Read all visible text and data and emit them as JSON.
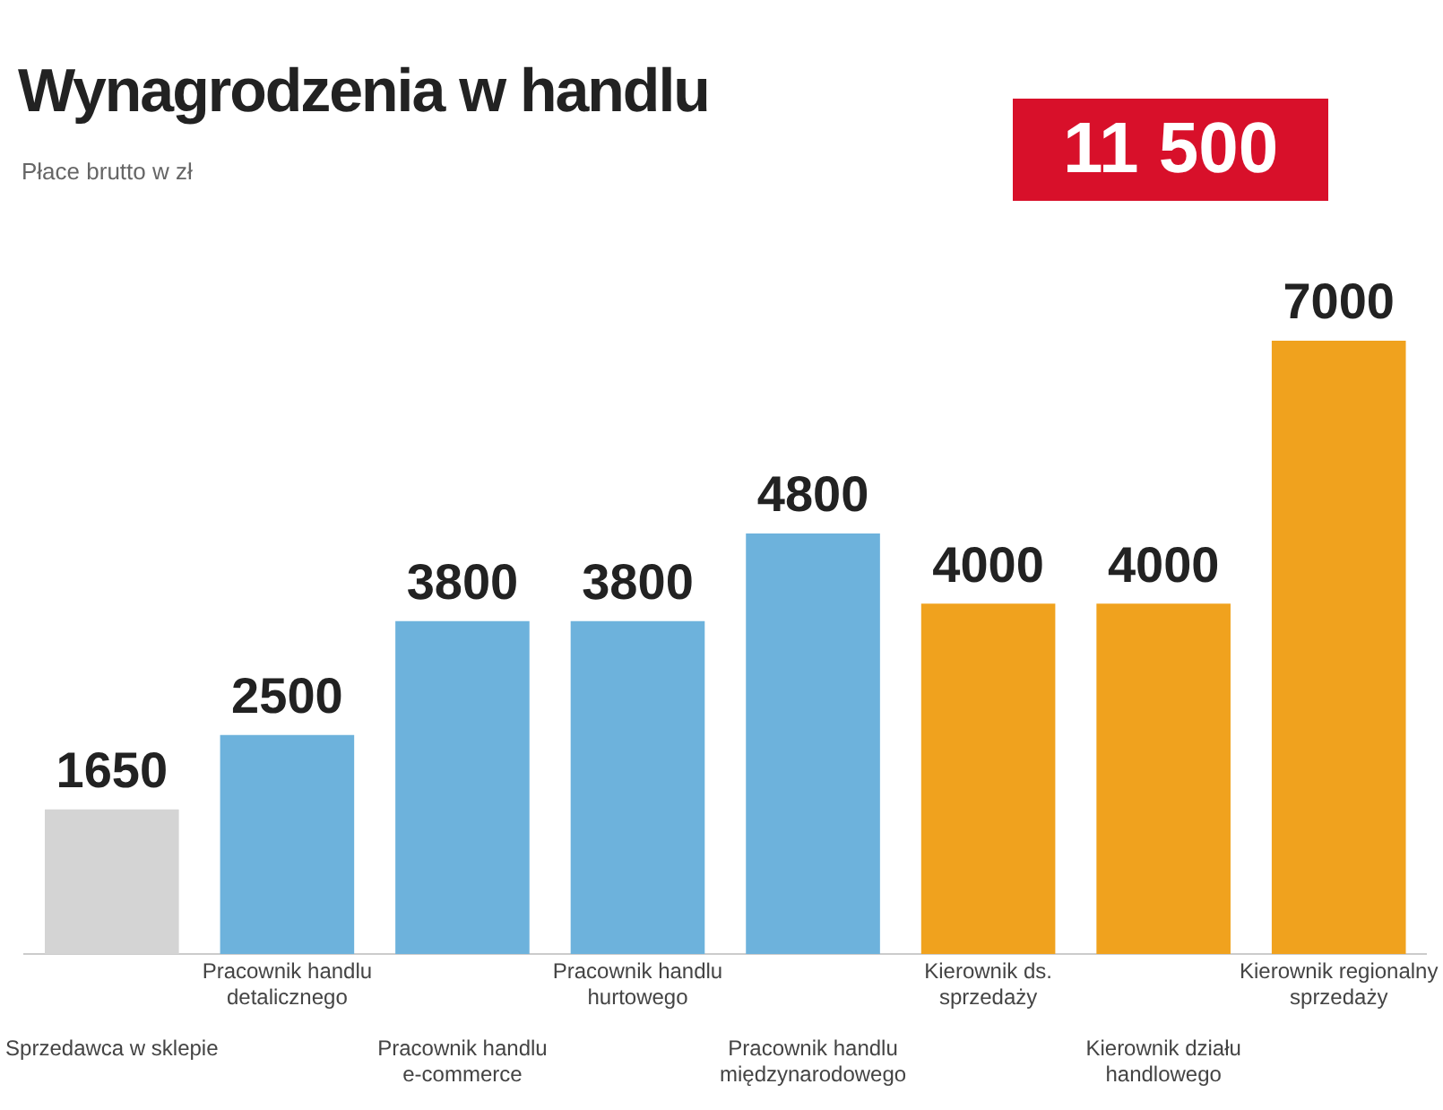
{
  "chart_data": {
    "type": "bar",
    "title": "Wynagrodzenia w handlu",
    "subtitle": "Płace brutto w zł",
    "categories": [
      "Sprzedawca w sklepie",
      "Pracownik handlu detalicznego",
      "Pracownik handlu e-commerce",
      "Pracownik handlu hurtowego",
      "Pracownik handlu międzynarodowego",
      "Kierownik ds. sprzedaży",
      "Kierownik działu handlowego",
      "Kierownik regionalny sprzedaży"
    ],
    "values": [
      1650,
      2500,
      3800,
      3800,
      4800,
      4000,
      4000,
      7000
    ],
    "colors": [
      "#d4d4d4",
      "#6db2dc",
      "#6db2dc",
      "#6db2dc",
      "#6db2dc",
      "#f0a21e",
      "#f0a21e",
      "#f0a21e"
    ],
    "data_labels": true,
    "grid": false,
    "legend": false,
    "annotations": [
      "11 500"
    ]
  }
}
